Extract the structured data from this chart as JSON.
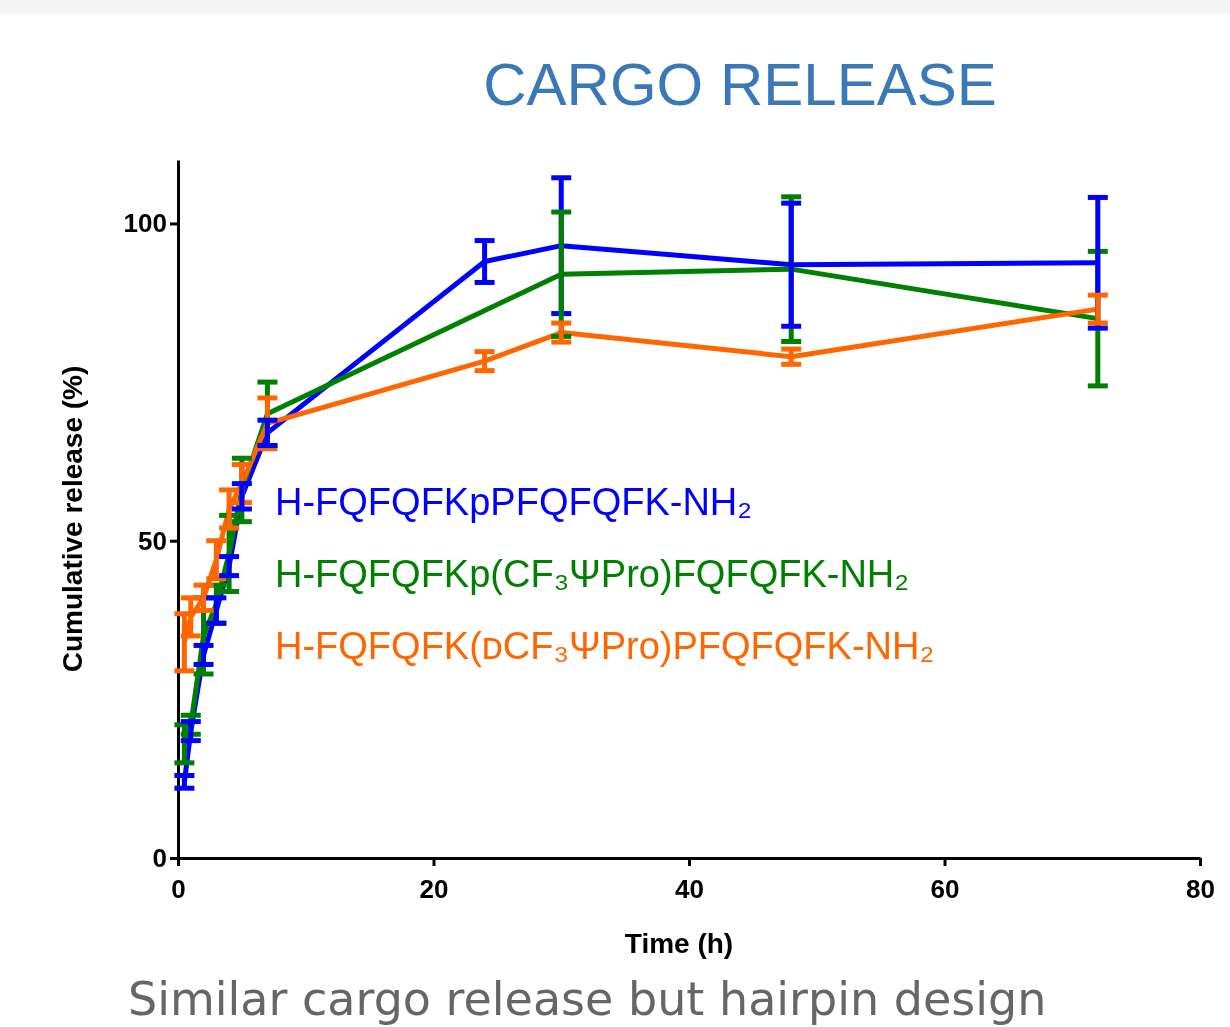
{
  "chart_data": {
    "type": "line",
    "title": "CARGO RELEASE",
    "xlabel": "Time (h)",
    "ylabel": "Cumulative release (%)",
    "xlim": [
      0,
      80
    ],
    "xticks": [
      0,
      20,
      40,
      60,
      80
    ],
    "ylim": [
      0,
      110
    ],
    "yticks": [
      0,
      50,
      100
    ],
    "legend": "left",
    "marker": "none",
    "line_style": "solid",
    "annotations": [
      "Similar cargo release but hairpin design"
    ],
    "series": [
      {
        "name": "H-FQFQFKpPFQFQFK-NH₂",
        "color": "#0000ff",
        "x": [
          0.5,
          1,
          2,
          3,
          4,
          5,
          7,
          24,
          30,
          48,
          72
        ],
        "values": [
          12,
          20,
          32,
          39,
          46,
          57,
          67,
          94,
          96.5,
          93.5,
          93.8
        ],
        "errors": [
          1,
          1.5,
          1.5,
          2,
          1.5,
          2,
          2,
          3.3,
          10.7,
          9.7,
          10.3
        ]
      },
      {
        "name": "H-FQFQFKp(CF₃ΨPro)FQFQFK-NH₂",
        "color": "#008000",
        "x": [
          0.5,
          1,
          2,
          3,
          4,
          5,
          7,
          30,
          48,
          72
        ],
        "values": [
          18,
          21,
          35,
          40,
          48,
          58,
          70,
          92,
          92.8,
          85
        ],
        "errors": [
          3,
          1.5,
          6,
          3,
          6,
          5,
          5,
          9.8,
          11.4,
          10.6
        ]
      },
      {
        "name": "H-FQFQFK(ᴅCF₃ΨPro)PFQFQFK-NH₂",
        "color": "#ff6600",
        "x": [
          0.5,
          1,
          2,
          3,
          4,
          5,
          7,
          24,
          30,
          48,
          72
        ],
        "values": [
          34,
          38,
          41,
          47,
          55,
          59,
          68.5,
          78.3,
          82.8,
          79,
          86.5
        ],
        "errors": [
          4.5,
          3,
          2,
          3,
          3,
          3,
          4,
          1.5,
          1.5,
          1.2,
          2.2
        ]
      }
    ]
  }
}
